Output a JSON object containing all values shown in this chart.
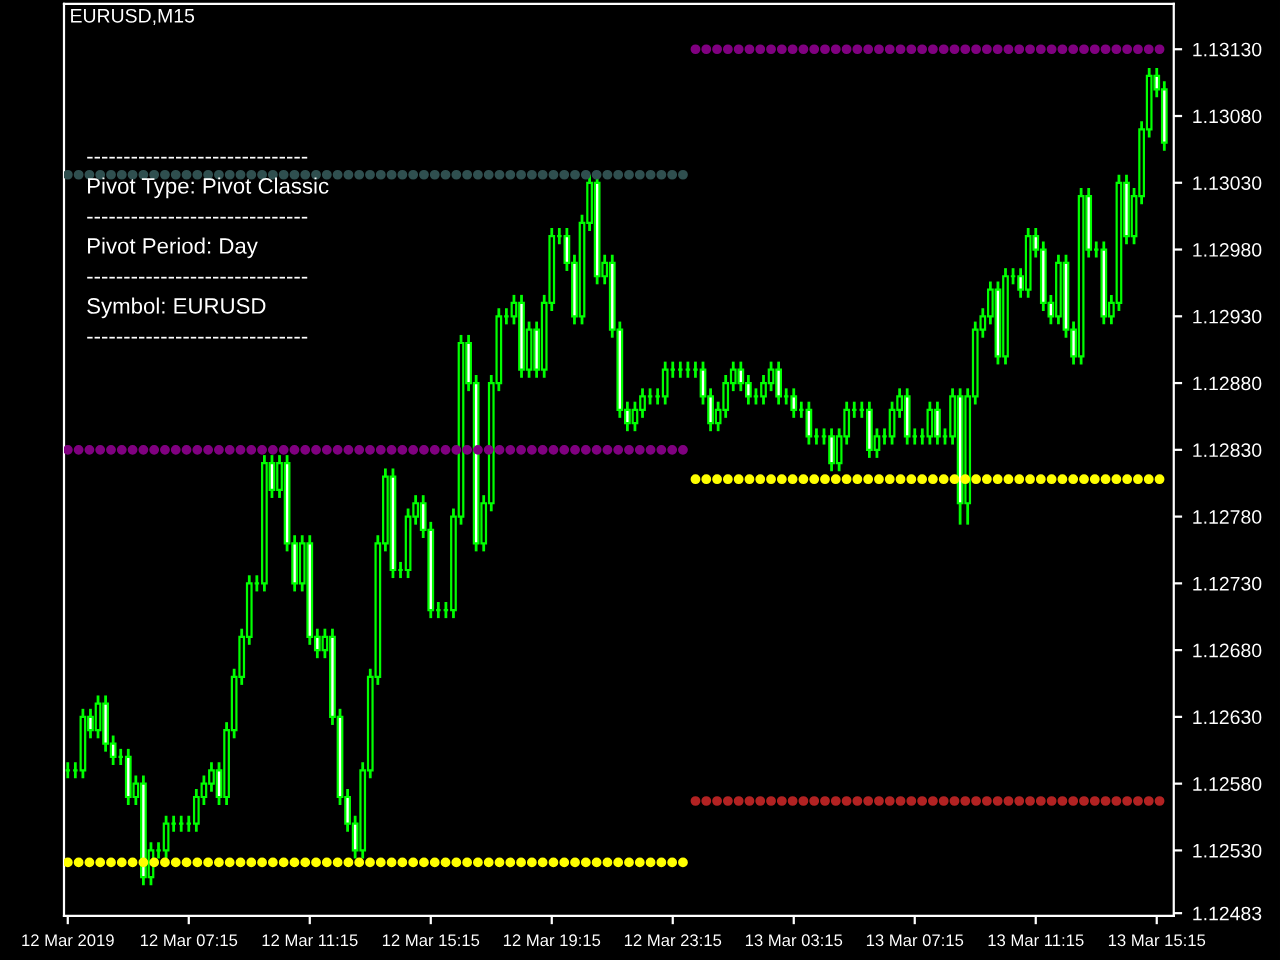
{
  "chart_data": {
    "type": "candlestick",
    "title": "EURUSD,M15",
    "annotations": [
      "------------------------------",
      "Pivot Type: Pivot Classic",
      "------------------------------",
      "Pivot Period: Day",
      "------------------------------",
      "Symbol: EURUSD",
      "------------------------------"
    ],
    "categories": [
      "12 Mar 2019",
      null,
      null,
      null,
      null,
      null,
      null,
      null,
      null,
      null,
      null,
      null,
      null,
      null,
      null,
      null,
      "12 Mar 07:15",
      null,
      null,
      null,
      null,
      null,
      null,
      null,
      null,
      null,
      null,
      null,
      null,
      null,
      null,
      null,
      "12 Mar 11:15",
      null,
      null,
      null,
      null,
      null,
      null,
      null,
      null,
      null,
      null,
      null,
      null,
      null,
      null,
      null,
      "12 Mar 15:15",
      null,
      null,
      null,
      null,
      null,
      null,
      null,
      null,
      null,
      null,
      null,
      null,
      null,
      null,
      null,
      "12 Mar 19:15",
      null,
      null,
      null,
      null,
      null,
      null,
      null,
      null,
      null,
      null,
      null,
      null,
      null,
      null,
      null,
      "12 Mar 23:15",
      null,
      null,
      null,
      null,
      null,
      null,
      null,
      null,
      null,
      null,
      null,
      null,
      null,
      null,
      null,
      "13 Mar 03:15",
      null,
      null,
      null,
      null,
      null,
      null,
      null,
      null,
      null,
      null,
      null,
      null,
      null,
      null,
      null,
      "13 Mar 07:15",
      null,
      null,
      null,
      null,
      null,
      null,
      null,
      null,
      null,
      null,
      null,
      null,
      null,
      null,
      null,
      "13 Mar 11:15",
      null,
      null,
      null,
      null,
      null,
      null,
      null,
      null,
      null,
      null,
      null,
      null,
      null,
      null,
      null,
      "13 Mar 15:15",
      null
    ],
    "ylim": [
      1.12481,
      1.13164
    ],
    "yticks": [
      {
        "value": 1.12483,
        "label": "1.12483"
      },
      {
        "value": 1.1253,
        "label": "1.12530"
      },
      {
        "value": 1.1258,
        "label": "1.12580"
      },
      {
        "value": 1.1263,
        "label": "1.12630"
      },
      {
        "value": 1.1268,
        "label": "1.12680"
      },
      {
        "value": 1.1273,
        "label": "1.12730"
      },
      {
        "value": 1.1278,
        "label": "1.12780"
      },
      {
        "value": 1.1283,
        "label": "1.12830"
      },
      {
        "value": 1.1288,
        "label": "1.12880"
      },
      {
        "value": 1.1293,
        "label": "1.12930"
      },
      {
        "value": 1.1298,
        "label": "1.12980"
      },
      {
        "value": 1.1303,
        "label": "1.13030"
      },
      {
        "value": 1.1308,
        "label": "1.13080"
      },
      {
        "value": 1.1313,
        "label": "1.13130"
      }
    ],
    "grid": false,
    "series": [
      {
        "type": "candlestick",
        "color": "#00ff00",
        "ohlc": [
          [
            1.1259,
            1.12595,
            1.12585,
            1.1259
          ],
          [
            1.1259,
            1.12595,
            1.12585,
            1.1259
          ],
          [
            1.1259,
            1.12635,
            1.12585,
            1.1263
          ],
          [
            1.1263,
            1.12635,
            1.12615,
            1.1262
          ],
          [
            1.1262,
            1.12645,
            1.12615,
            1.1264
          ],
          [
            1.1264,
            1.12645,
            1.12605,
            1.1261
          ],
          [
            1.1261,
            1.12615,
            1.12595,
            1.126
          ],
          [
            1.126,
            1.12605,
            1.12595,
            1.126
          ],
          [
            1.126,
            1.12605,
            1.12565,
            1.1257
          ],
          [
            1.1257,
            1.12585,
            1.12565,
            1.1258
          ],
          [
            1.1258,
            1.12585,
            1.12505,
            1.1251
          ],
          [
            1.1251,
            1.12535,
            1.12505,
            1.1253
          ],
          [
            1.1253,
            1.12535,
            1.12525,
            1.1253
          ],
          [
            1.1253,
            1.12555,
            1.12525,
            1.1255
          ],
          [
            1.1255,
            1.12555,
            1.12545,
            1.1255
          ],
          [
            1.1255,
            1.12555,
            1.12545,
            1.1255
          ],
          [
            1.1255,
            1.12555,
            1.12545,
            1.1255
          ],
          [
            1.1255,
            1.12575,
            1.12545,
            1.1257
          ],
          [
            1.1257,
            1.12585,
            1.12565,
            1.1258
          ],
          [
            1.1258,
            1.12595,
            1.12575,
            1.1259
          ],
          [
            1.1259,
            1.12595,
            1.12565,
            1.1257
          ],
          [
            1.1257,
            1.12625,
            1.12565,
            1.1262
          ],
          [
            1.1262,
            1.12665,
            1.12615,
            1.1266
          ],
          [
            1.1266,
            1.12695,
            1.12655,
            1.1269
          ],
          [
            1.1269,
            1.12735,
            1.12685,
            1.1273
          ],
          [
            1.1273,
            1.12735,
            1.12725,
            1.1273
          ],
          [
            1.1273,
            1.12825,
            1.12725,
            1.1282
          ],
          [
            1.1282,
            1.12825,
            1.12795,
            1.128
          ],
          [
            1.128,
            1.12825,
            1.12795,
            1.1282
          ],
          [
            1.1282,
            1.12825,
            1.12755,
            1.1276
          ],
          [
            1.1276,
            1.12765,
            1.12725,
            1.1273
          ],
          [
            1.1273,
            1.12765,
            1.12725,
            1.1276
          ],
          [
            1.1276,
            1.12765,
            1.12685,
            1.1269
          ],
          [
            1.1269,
            1.12695,
            1.12675,
            1.1268
          ],
          [
            1.1268,
            1.12695,
            1.12675,
            1.1269
          ],
          [
            1.1269,
            1.12695,
            1.12625,
            1.1263
          ],
          [
            1.1263,
            1.12635,
            1.12565,
            1.1257
          ],
          [
            1.1257,
            1.12575,
            1.12545,
            1.1255
          ],
          [
            1.1255,
            1.12555,
            1.12525,
            1.1253
          ],
          [
            1.1253,
            1.12595,
            1.12525,
            1.1259
          ],
          [
            1.1259,
            1.12665,
            1.12585,
            1.1266
          ],
          [
            1.1266,
            1.12765,
            1.12655,
            1.1276
          ],
          [
            1.1276,
            1.12815,
            1.12755,
            1.1281
          ],
          [
            1.1281,
            1.12815,
            1.12735,
            1.1274
          ],
          [
            1.1274,
            1.12745,
            1.12735,
            1.1274
          ],
          [
            1.1274,
            1.12785,
            1.12735,
            1.1278
          ],
          [
            1.1278,
            1.12795,
            1.12775,
            1.1279
          ],
          [
            1.1279,
            1.12795,
            1.12765,
            1.1277
          ],
          [
            1.1277,
            1.12775,
            1.12705,
            1.1271
          ],
          [
            1.1271,
            1.12715,
            1.12705,
            1.1271
          ],
          [
            1.1271,
            1.12715,
            1.12705,
            1.1271
          ],
          [
            1.1271,
            1.12785,
            1.12705,
            1.1278
          ],
          [
            1.1278,
            1.12915,
            1.12775,
            1.1291
          ],
          [
            1.1291,
            1.12915,
            1.12875,
            1.1288
          ],
          [
            1.1288,
            1.12885,
            1.12755,
            1.1276
          ],
          [
            1.1276,
            1.12795,
            1.12755,
            1.1279
          ],
          [
            1.1279,
            1.12885,
            1.12785,
            1.1288
          ],
          [
            1.1288,
            1.12935,
            1.12875,
            1.1293
          ],
          [
            1.1293,
            1.12935,
            1.12925,
            1.1293
          ],
          [
            1.1293,
            1.12945,
            1.12925,
            1.1294
          ],
          [
            1.1294,
            1.12945,
            1.12885,
            1.1289
          ],
          [
            1.1289,
            1.12925,
            1.12885,
            1.1292
          ],
          [
            1.1292,
            1.12925,
            1.12885,
            1.1289
          ],
          [
            1.1289,
            1.12945,
            1.12885,
            1.1294
          ],
          [
            1.1294,
            1.12995,
            1.12935,
            1.1299
          ],
          [
            1.1299,
            1.12995,
            1.12985,
            1.1299
          ],
          [
            1.1299,
            1.12995,
            1.12965,
            1.1297
          ],
          [
            1.1297,
            1.12975,
            1.12925,
            1.1293
          ],
          [
            1.1293,
            1.13005,
            1.12925,
            1.13
          ],
          [
            1.13,
            1.13035,
            1.12995,
            1.1303
          ],
          [
            1.1303,
            1.13035,
            1.12955,
            1.1296
          ],
          [
            1.1296,
            1.12975,
            1.12955,
            1.1297
          ],
          [
            1.1297,
            1.12975,
            1.12915,
            1.1292
          ],
          [
            1.1292,
            1.12925,
            1.12855,
            1.1286
          ],
          [
            1.1286,
            1.12865,
            1.12845,
            1.1285
          ],
          [
            1.1285,
            1.12865,
            1.12845,
            1.1286
          ],
          [
            1.1286,
            1.12875,
            1.12855,
            1.1287
          ],
          [
            1.1287,
            1.12875,
            1.12865,
            1.1287
          ],
          [
            1.1287,
            1.12875,
            1.12865,
            1.1287
          ],
          [
            1.1287,
            1.12895,
            1.12865,
            1.1289
          ],
          [
            1.1289,
            1.12895,
            1.12885,
            1.1289
          ],
          [
            1.1289,
            1.12895,
            1.12885,
            1.1289
          ],
          [
            1.1289,
            1.12895,
            1.12885,
            1.1289
          ],
          [
            1.1289,
            1.12895,
            1.12885,
            1.1289
          ],
          [
            1.1289,
            1.12895,
            1.12865,
            1.1287
          ],
          [
            1.1287,
            1.12875,
            1.12845,
            1.1285
          ],
          [
            1.1285,
            1.12865,
            1.12845,
            1.1286
          ],
          [
            1.1286,
            1.12885,
            1.12855,
            1.1288
          ],
          [
            1.1288,
            1.12895,
            1.12875,
            1.1289
          ],
          [
            1.1289,
            1.12895,
            1.12875,
            1.1288
          ],
          [
            1.1288,
            1.12885,
            1.12865,
            1.1287
          ],
          [
            1.1287,
            1.12875,
            1.12865,
            1.1287
          ],
          [
            1.1287,
            1.12885,
            1.12865,
            1.1288
          ],
          [
            1.1288,
            1.12895,
            1.12875,
            1.1289
          ],
          [
            1.1289,
            1.12895,
            1.12865,
            1.1287
          ],
          [
            1.1287,
            1.12875,
            1.12865,
            1.1287
          ],
          [
            1.1287,
            1.12875,
            1.12855,
            1.1286
          ],
          [
            1.1286,
            1.12865,
            1.12855,
            1.1286
          ],
          [
            1.1286,
            1.12865,
            1.12835,
            1.1284
          ],
          [
            1.1284,
            1.12845,
            1.12835,
            1.1284
          ],
          [
            1.1284,
            1.12845,
            1.12835,
            1.1284
          ],
          [
            1.1284,
            1.12845,
            1.12815,
            1.1282
          ],
          [
            1.1282,
            1.12845,
            1.12815,
            1.1284
          ],
          [
            1.1284,
            1.12865,
            1.12835,
            1.1286
          ],
          [
            1.1286,
            1.12865,
            1.12855,
            1.1286
          ],
          [
            1.1286,
            1.12865,
            1.12855,
            1.1286
          ],
          [
            1.1286,
            1.12865,
            1.12825,
            1.1283
          ],
          [
            1.1283,
            1.12845,
            1.12825,
            1.1284
          ],
          [
            1.1284,
            1.12845,
            1.12835,
            1.1284
          ],
          [
            1.1284,
            1.12865,
            1.12835,
            1.1286
          ],
          [
            1.1286,
            1.12875,
            1.12855,
            1.1287
          ],
          [
            1.1287,
            1.12875,
            1.12835,
            1.1284
          ],
          [
            1.1284,
            1.12845,
            1.12835,
            1.1284
          ],
          [
            1.1284,
            1.12845,
            1.12835,
            1.1284
          ],
          [
            1.1284,
            1.12865,
            1.12835,
            1.1286
          ],
          [
            1.1286,
            1.12865,
            1.12835,
            1.1284
          ],
          [
            1.1284,
            1.12845,
            1.12835,
            1.1284
          ],
          [
            1.1284,
            1.12875,
            1.12835,
            1.1287
          ],
          [
            1.1287,
            1.12875,
            1.12775,
            1.1279
          ],
          [
            1.1279,
            1.12875,
            1.12775,
            1.1287
          ],
          [
            1.1287,
            1.12925,
            1.12865,
            1.1292
          ],
          [
            1.1292,
            1.12935,
            1.12915,
            1.1293
          ],
          [
            1.1293,
            1.12955,
            1.12925,
            1.1295
          ],
          [
            1.1295,
            1.12955,
            1.12895,
            1.129
          ],
          [
            1.129,
            1.12965,
            1.12895,
            1.1296
          ],
          [
            1.1296,
            1.12965,
            1.12955,
            1.1296
          ],
          [
            1.1296,
            1.12965,
            1.12945,
            1.1295
          ],
          [
            1.1295,
            1.12995,
            1.12945,
            1.1299
          ],
          [
            1.1299,
            1.12995,
            1.12975,
            1.1298
          ],
          [
            1.1298,
            1.12985,
            1.12935,
            1.1294
          ],
          [
            1.1294,
            1.12945,
            1.12925,
            1.1293
          ],
          [
            1.1293,
            1.12975,
            1.12925,
            1.1297
          ],
          [
            1.1297,
            1.12975,
            1.12915,
            1.1292
          ],
          [
            1.1292,
            1.12925,
            1.12895,
            1.129
          ],
          [
            1.129,
            1.13025,
            1.12895,
            1.1302
          ],
          [
            1.1302,
            1.13025,
            1.12975,
            1.1298
          ],
          [
            1.1298,
            1.12985,
            1.12975,
            1.1298
          ],
          [
            1.1298,
            1.12985,
            1.12925,
            1.1293
          ],
          [
            1.1293,
            1.12945,
            1.12925,
            1.1294
          ],
          [
            1.1294,
            1.13035,
            1.12935,
            1.1303
          ],
          [
            1.1303,
            1.13035,
            1.12985,
            1.1299
          ],
          [
            1.1299,
            1.13025,
            1.12985,
            1.1302
          ],
          [
            1.1302,
            1.13075,
            1.13015,
            1.1307
          ],
          [
            1.1307,
            1.13115,
            1.13065,
            1.1311
          ],
          [
            1.1311,
            1.13115,
            1.13095,
            1.131
          ],
          [
            1.131,
            1.13105,
            1.13055,
            1.1306
          ]
        ]
      },
      {
        "type": "line",
        "line_style": "dotted",
        "color": "#2f4f4f",
        "values": [
          1.13036,
          1.13036,
          1.13036,
          1.13036,
          1.13036,
          1.13036,
          1.13036,
          1.13036,
          1.13036,
          1.13036,
          1.13036,
          1.13036,
          1.13036,
          1.13036,
          1.13036,
          1.13036,
          1.13036,
          1.13036,
          1.13036,
          1.13036,
          1.13036,
          1.13036,
          1.13036,
          1.13036,
          1.13036,
          1.13036,
          1.13036,
          1.13036,
          1.13036,
          1.13036,
          1.13036,
          1.13036,
          1.13036,
          1.13036,
          1.13036,
          1.13036,
          1.13036,
          1.13036,
          1.13036,
          1.13036,
          1.13036,
          1.13036,
          1.13036,
          1.13036,
          1.13036,
          1.13036,
          1.13036,
          1.13036,
          1.13036,
          1.13036,
          1.13036,
          1.13036,
          1.13036,
          1.13036,
          1.13036,
          1.13036,
          1.13036,
          1.13036,
          1.13036,
          1.13036,
          1.13036,
          1.13036,
          1.13036,
          1.13036,
          1.13036,
          1.13036,
          1.13036,
          1.13036,
          1.13036,
          1.13036,
          1.13036,
          1.13036,
          1.13036,
          1.13036,
          1.13036,
          1.13036,
          1.13036,
          1.13036,
          1.13036,
          1.13036,
          1.13036,
          1.13036,
          1.13036,
          null,
          null,
          null,
          null,
          null,
          null,
          null,
          null,
          null,
          null,
          null,
          null,
          null,
          null,
          null,
          null,
          null,
          null,
          null,
          null,
          null,
          null,
          null,
          null,
          null,
          null,
          null,
          null,
          null,
          null,
          null,
          null,
          null,
          null,
          null,
          null,
          null,
          null,
          null,
          null,
          null,
          null,
          null,
          null,
          null,
          null,
          null,
          null,
          null,
          null,
          null,
          null,
          null,
          null,
          null,
          null,
          null,
          null,
          null,
          null,
          null,
          null,
          null
        ]
      },
      {
        "type": "line",
        "line_style": "dotted",
        "color": "#800080",
        "values": [
          1.1283,
          1.1283,
          1.1283,
          1.1283,
          1.1283,
          1.1283,
          1.1283,
          1.1283,
          1.1283,
          1.1283,
          1.1283,
          1.1283,
          1.1283,
          1.1283,
          1.1283,
          1.1283,
          1.1283,
          1.1283,
          1.1283,
          1.1283,
          1.1283,
          1.1283,
          1.1283,
          1.1283,
          1.1283,
          1.1283,
          1.1283,
          1.1283,
          1.1283,
          1.1283,
          1.1283,
          1.1283,
          1.1283,
          1.1283,
          1.1283,
          1.1283,
          1.1283,
          1.1283,
          1.1283,
          1.1283,
          1.1283,
          1.1283,
          1.1283,
          1.1283,
          1.1283,
          1.1283,
          1.1283,
          1.1283,
          1.1283,
          1.1283,
          1.1283,
          1.1283,
          1.1283,
          1.1283,
          1.1283,
          1.1283,
          1.1283,
          1.1283,
          1.1283,
          1.1283,
          1.1283,
          1.1283,
          1.1283,
          1.1283,
          1.1283,
          1.1283,
          1.1283,
          1.1283,
          1.1283,
          1.1283,
          1.1283,
          1.1283,
          1.1283,
          1.1283,
          1.1283,
          1.1283,
          1.1283,
          1.1283,
          1.1283,
          1.1283,
          1.1283,
          1.1283,
          1.1283,
          null,
          null,
          null,
          null,
          null,
          null,
          null,
          null,
          null,
          null,
          null,
          null,
          null,
          null,
          null,
          null,
          null,
          null,
          null,
          null,
          null,
          null,
          null,
          null,
          null,
          null,
          null,
          null,
          null,
          null,
          null,
          null,
          null,
          null,
          null,
          null,
          null,
          null,
          null,
          null,
          null,
          null,
          null,
          null,
          null,
          null,
          null,
          null,
          null,
          null,
          null,
          null,
          null,
          null,
          null,
          null,
          null,
          null,
          null,
          null,
          null,
          null,
          null
        ]
      },
      {
        "type": "line",
        "line_style": "dotted",
        "color": "#ffff00",
        "values": [
          1.12521,
          1.12521,
          1.12521,
          1.12521,
          1.12521,
          1.12521,
          1.12521,
          1.12521,
          1.12521,
          1.12521,
          1.12521,
          1.12521,
          1.12521,
          1.12521,
          1.12521,
          1.12521,
          1.12521,
          1.12521,
          1.12521,
          1.12521,
          1.12521,
          1.12521,
          1.12521,
          1.12521,
          1.12521,
          1.12521,
          1.12521,
          1.12521,
          1.12521,
          1.12521,
          1.12521,
          1.12521,
          1.12521,
          1.12521,
          1.12521,
          1.12521,
          1.12521,
          1.12521,
          1.12521,
          1.12521,
          1.12521,
          1.12521,
          1.12521,
          1.12521,
          1.12521,
          1.12521,
          1.12521,
          1.12521,
          1.12521,
          1.12521,
          1.12521,
          1.12521,
          1.12521,
          1.12521,
          1.12521,
          1.12521,
          1.12521,
          1.12521,
          1.12521,
          1.12521,
          1.12521,
          1.12521,
          1.12521,
          1.12521,
          1.12521,
          1.12521,
          1.12521,
          1.12521,
          1.12521,
          1.12521,
          1.12521,
          1.12521,
          1.12521,
          1.12521,
          1.12521,
          1.12521,
          1.12521,
          1.12521,
          1.12521,
          1.12521,
          1.12521,
          1.12521,
          1.12521,
          null,
          null,
          null,
          null,
          null,
          null,
          null,
          null,
          null,
          null,
          null,
          null,
          null,
          null,
          null,
          null,
          null,
          null,
          null,
          null,
          null,
          null,
          null,
          null,
          null,
          null,
          null,
          null,
          null,
          null,
          null,
          null,
          null,
          null,
          null,
          null,
          null,
          null,
          null,
          null,
          null,
          null,
          null,
          null,
          null,
          null,
          null,
          null,
          null,
          null,
          null,
          null,
          null,
          null,
          null,
          null,
          null,
          null,
          null,
          null,
          null,
          null,
          null
        ]
      },
      {
        "type": "line",
        "line_style": "dotted",
        "color": "#800080",
        "values": [
          null,
          null,
          null,
          null,
          null,
          null,
          null,
          null,
          null,
          null,
          null,
          null,
          null,
          null,
          null,
          null,
          null,
          null,
          null,
          null,
          null,
          null,
          null,
          null,
          null,
          null,
          null,
          null,
          null,
          null,
          null,
          null,
          null,
          null,
          null,
          null,
          null,
          null,
          null,
          null,
          null,
          null,
          null,
          null,
          null,
          null,
          null,
          null,
          null,
          null,
          null,
          null,
          null,
          null,
          null,
          null,
          null,
          null,
          null,
          null,
          null,
          null,
          null,
          null,
          null,
          null,
          null,
          null,
          null,
          null,
          null,
          null,
          null,
          null,
          null,
          null,
          null,
          null,
          null,
          null,
          null,
          null,
          null,
          1.1313,
          1.1313,
          1.1313,
          1.1313,
          1.1313,
          1.1313,
          1.1313,
          1.1313,
          1.1313,
          1.1313,
          1.1313,
          1.1313,
          1.1313,
          1.1313,
          1.1313,
          1.1313,
          1.1313,
          1.1313,
          1.1313,
          1.1313,
          1.1313,
          1.1313,
          1.1313,
          1.1313,
          1.1313,
          1.1313,
          1.1313,
          1.1313,
          1.1313,
          1.1313,
          1.1313,
          1.1313,
          1.1313,
          1.1313,
          1.1313,
          1.1313,
          1.1313,
          1.1313,
          1.1313,
          1.1313,
          1.1313,
          1.1313,
          1.1313,
          1.1313,
          1.1313,
          1.1313,
          1.1313,
          1.1313,
          1.1313,
          1.1313,
          1.1313,
          1.1313,
          1.1313,
          1.1313,
          1.1313,
          1.1313,
          1.1313,
          1.1313,
          1.1313,
          1.1313,
          1.1313,
          1.1313,
          1.1313
        ]
      },
      {
        "type": "line",
        "line_style": "dotted",
        "color": "#ffff00",
        "values": [
          null,
          null,
          null,
          null,
          null,
          null,
          null,
          null,
          null,
          null,
          null,
          null,
          null,
          null,
          null,
          null,
          null,
          null,
          null,
          null,
          null,
          null,
          null,
          null,
          null,
          null,
          null,
          null,
          null,
          null,
          null,
          null,
          null,
          null,
          null,
          null,
          null,
          null,
          null,
          null,
          null,
          null,
          null,
          null,
          null,
          null,
          null,
          null,
          null,
          null,
          null,
          null,
          null,
          null,
          null,
          null,
          null,
          null,
          null,
          null,
          null,
          null,
          null,
          null,
          null,
          null,
          null,
          null,
          null,
          null,
          null,
          null,
          null,
          null,
          null,
          null,
          null,
          null,
          null,
          null,
          null,
          null,
          null,
          1.12808,
          1.12808,
          1.12808,
          1.12808,
          1.12808,
          1.12808,
          1.12808,
          1.12808,
          1.12808,
          1.12808,
          1.12808,
          1.12808,
          1.12808,
          1.12808,
          1.12808,
          1.12808,
          1.12808,
          1.12808,
          1.12808,
          1.12808,
          1.12808,
          1.12808,
          1.12808,
          1.12808,
          1.12808,
          1.12808,
          1.12808,
          1.12808,
          1.12808,
          1.12808,
          1.12808,
          1.12808,
          1.12808,
          1.12808,
          1.12808,
          1.12808,
          1.12808,
          1.12808,
          1.12808,
          1.12808,
          1.12808,
          1.12808,
          1.12808,
          1.12808,
          1.12808,
          1.12808,
          1.12808,
          1.12808,
          1.12808,
          1.12808,
          1.12808,
          1.12808,
          1.12808,
          1.12808,
          1.12808,
          1.12808,
          1.12808,
          1.12808,
          1.12808,
          1.12808,
          1.12808,
          1.12808,
          1.12808
        ]
      },
      {
        "type": "line",
        "line_style": "dotted",
        "color": "#b22222",
        "values": [
          null,
          null,
          null,
          null,
          null,
          null,
          null,
          null,
          null,
          null,
          null,
          null,
          null,
          null,
          null,
          null,
          null,
          null,
          null,
          null,
          null,
          null,
          null,
          null,
          null,
          null,
          null,
          null,
          null,
          null,
          null,
          null,
          null,
          null,
          null,
          null,
          null,
          null,
          null,
          null,
          null,
          null,
          null,
          null,
          null,
          null,
          null,
          null,
          null,
          null,
          null,
          null,
          null,
          null,
          null,
          null,
          null,
          null,
          null,
          null,
          null,
          null,
          null,
          null,
          null,
          null,
          null,
          null,
          null,
          null,
          null,
          null,
          null,
          null,
          null,
          null,
          null,
          null,
          null,
          null,
          null,
          null,
          null,
          1.12567,
          1.12567,
          1.12567,
          1.12567,
          1.12567,
          1.12567,
          1.12567,
          1.12567,
          1.12567,
          1.12567,
          1.12567,
          1.12567,
          1.12567,
          1.12567,
          1.12567,
          1.12567,
          1.12567,
          1.12567,
          1.12567,
          1.12567,
          1.12567,
          1.12567,
          1.12567,
          1.12567,
          1.12567,
          1.12567,
          1.12567,
          1.12567,
          1.12567,
          1.12567,
          1.12567,
          1.12567,
          1.12567,
          1.12567,
          1.12567,
          1.12567,
          1.12567,
          1.12567,
          1.12567,
          1.12567,
          1.12567,
          1.12567,
          1.12567,
          1.12567,
          1.12567,
          1.12567,
          1.12567,
          1.12567,
          1.12567,
          1.12567,
          1.12567,
          1.12567,
          1.12567,
          1.12567,
          1.12567,
          1.12567,
          1.12567,
          1.12567,
          1.12567,
          1.12567,
          1.12567,
          1.12567,
          1.12567
        ]
      }
    ]
  }
}
